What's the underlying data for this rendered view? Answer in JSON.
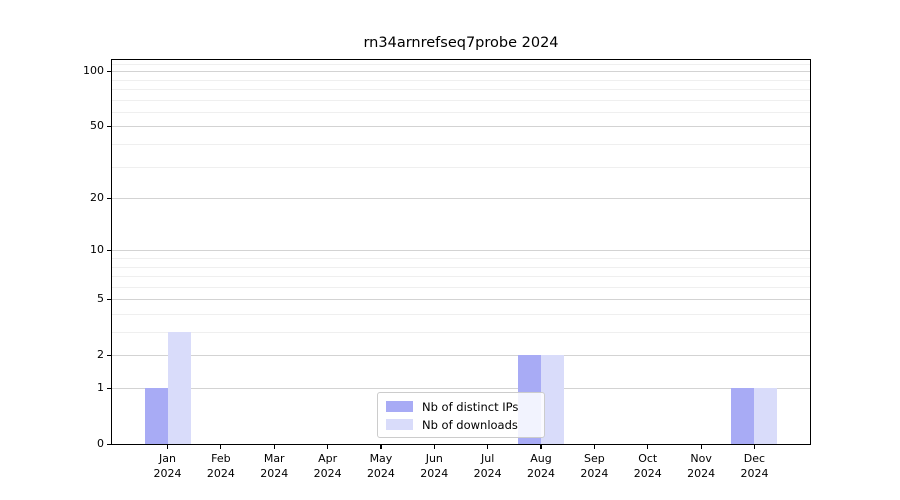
{
  "title": "rn34arnrefseq7probe 2024",
  "chart_data": {
    "type": "bar",
    "title": "rn34arnrefseq7probe 2024",
    "categories": [
      "Jan\n2024",
      "Feb\n2024",
      "Mar\n2024",
      "Apr\n2024",
      "May\n2024",
      "Jun\n2024",
      "Jul\n2024",
      "Aug\n2024",
      "Sep\n2024",
      "Oct\n2024",
      "Nov\n2024",
      "Dec\n2024"
    ],
    "series": [
      {
        "name": "Nb of distinct IPs",
        "color": "#a8abf5",
        "values": [
          1,
          0,
          0,
          0,
          0,
          0,
          0,
          2,
          0,
          0,
          0,
          1
        ]
      },
      {
        "name": "Nb of downloads",
        "color": "#d9dcfa",
        "values": [
          3,
          0,
          0,
          0,
          0,
          0,
          0,
          2,
          0,
          0,
          0,
          1
        ]
      }
    ],
    "yticks": [
      0,
      1,
      2,
      5,
      10,
      20,
      50,
      100
    ],
    "minor_yticks": [
      3,
      4,
      6,
      7,
      8,
      9,
      30,
      40,
      60,
      70,
      80,
      90,
      110
    ],
    "scale": "log1p",
    "ylim": [
      0,
      115
    ],
    "xlabel": "",
    "ylabel": "",
    "grid": {
      "major_color": "#d3d3d3",
      "minor_color": "#efefef"
    },
    "legend": {
      "position": "bottom-center",
      "items": [
        "Nb of distinct IPs",
        "Nb of downloads"
      ]
    }
  }
}
